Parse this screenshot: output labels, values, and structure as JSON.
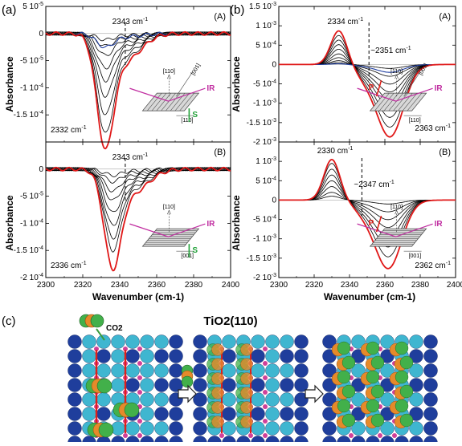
{
  "figure_labels": {
    "a": "(a)",
    "b": "(b)",
    "c": "(c)"
  },
  "panel_c": {
    "co2_label": "CO2",
    "title": "TiO2(110)",
    "colors": {
      "ti_dark": "#1f3e9c",
      "ti_light": "#3fb6d0",
      "o_pink": "#d0409a",
      "co2_c": "#e58a2a",
      "co2_o": "#42b04a",
      "arrow_red": "#e0201a"
    }
  },
  "chart_data": [
    {
      "type": "line",
      "panel": "(a)-(A)",
      "tag": "(A)",
      "xlabel": "Wavenumber (cm-1)",
      "ylabel": "Absorbance",
      "xlim": [
        2300,
        2400
      ],
      "ylim": [
        -0.0002,
        5e-05
      ],
      "xticks": [
        "2300",
        "2320",
        "2340",
        "2360",
        "2380",
        "2400"
      ],
      "yticks": [
        {
          "v": 5e-05,
          "label": "5 10-5"
        },
        {
          "v": 0,
          "label": "0"
        },
        {
          "v": -5e-05,
          "label": "-5 10-5"
        },
        {
          "v": -0.0001,
          "label": "-1 10-4"
        },
        {
          "v": -0.00015,
          "label": "-1.5 10-4"
        }
      ],
      "annotations": [
        "2343 cm-1",
        "2332 cm-1"
      ],
      "peak": {
        "x": 2332,
        "type": "down",
        "dashed_at": 2343
      },
      "series": [
        {
          "color": "#000000",
          "amplitudes": [
            -1e-05,
            -2e-05,
            -3.5e-05,
            -5.5e-05,
            -7.5e-05,
            -0.0001,
            -0.00013,
            -0.00016
          ]
        },
        {
          "color": "#1f3ea0",
          "amplitudes": [
            -2.2e-05
          ]
        },
        {
          "color": "#e01818",
          "amplitudes": [
            -0.000185
          ]
        }
      ],
      "inset": {
        "top": "[110]",
        "diag": "[001]",
        "bottom": "[110]",
        "beam": "IR",
        "pol": "S"
      }
    },
    {
      "type": "line",
      "panel": "(a)-(B)",
      "tag": "(B)",
      "xlabel": "Wavenumber (cm-1)",
      "ylabel": "Absorbance",
      "xlim": [
        2300,
        2400
      ],
      "ylim": [
        -0.0002,
        5e-05
      ],
      "xticks": [
        "2300",
        "2320",
        "2340",
        "2360",
        "2380",
        "2400"
      ],
      "yticks": [
        {
          "v": 0,
          "label": "0"
        },
        {
          "v": -5e-05,
          "label": "-5 10-5"
        },
        {
          "v": -0.0001,
          "label": "-1 10-4"
        },
        {
          "v": -0.00015,
          "label": "-1.5 10-4"
        },
        {
          "v": -0.0002,
          "label": "-2 10-4"
        }
      ],
      "annotations": [
        "2343 cm-1",
        "2336 cm-1"
      ],
      "peak": {
        "x": 2336,
        "type": "down",
        "dashed_at": 2343
      },
      "series": [
        {
          "color": "#000000",
          "amplitudes": [
            -1e-05,
            -2e-05,
            -3.5e-05,
            -5e-05,
            -7e-05,
            -9e-05,
            -0.00011,
            -0.00013
          ]
        },
        {
          "color": "#e01818",
          "amplitudes": [
            -0.00016
          ]
        }
      ],
      "inset": {
        "top": "[110]",
        "bottom": "[001]",
        "beam": "IR",
        "pol": "S"
      }
    },
    {
      "type": "line",
      "panel": "(b)-(A)",
      "tag": "(A)",
      "xlabel": "Wavenumber (cm-1)",
      "ylabel": "Absorbance",
      "xlim": [
        2300,
        2400
      ],
      "ylim": [
        -0.002,
        0.0015
      ],
      "xticks": [
        "2300",
        "2320",
        "2340",
        "2360",
        "2380",
        "2400"
      ],
      "yticks": [
        {
          "v": 0.0015,
          "label": "1.5 10-3"
        },
        {
          "v": 0.001,
          "label": "1 10-3"
        },
        {
          "v": 0.0005,
          "label": "5 10-4"
        },
        {
          "v": 0,
          "label": "0"
        },
        {
          "v": -0.0005,
          "label": "-5 10-4"
        },
        {
          "v": -0.001,
          "label": "-1 10-3"
        },
        {
          "v": -0.0015,
          "label": "-1.5 10-3"
        },
        {
          "v": -0.002,
          "label": "-2 10-3"
        }
      ],
      "annotations": [
        "2334 cm-1",
        "~2351 cm-1",
        "2363 cm-1"
      ],
      "peak": {
        "x": 2334,
        "type": "bipolar",
        "neg_x": 2363,
        "dashed_at": 2351
      },
      "series": [
        {
          "color": "#000000",
          "pos": [
            5e-05,
            0.0001,
            0.00018,
            0.00028,
            0.0004,
            0.00052,
            0.00064,
            0.00076
          ],
          "neg": [
            -0.0001,
            -0.0003,
            -0.0005,
            -0.0007,
            -0.0009,
            -0.0011,
            -0.00135,
            -0.0016
          ]
        },
        {
          "color": "#1f3ea0",
          "pos": [
            2e-05
          ],
          "neg": [
            -0.0002
          ]
        },
        {
          "color": "#e01818",
          "pos": [
            0.00088
          ],
          "neg": [
            -0.00185
          ]
        }
      ],
      "inset": {
        "top": "[110]",
        "diag": "[001]",
        "bottom": "[110]",
        "beam": "IR",
        "pol": "P"
      }
    },
    {
      "type": "line",
      "panel": "(b)-(B)",
      "tag": "(B)",
      "xlabel": "Wavenumber (cm-1)",
      "ylabel": "Absorbance",
      "xlim": [
        2300,
        2400
      ],
      "ylim": [
        -0.002,
        0.0015
      ],
      "xticks": [
        "2300",
        "2320",
        "2340",
        "2360",
        "2380",
        "2400"
      ],
      "yticks": [
        {
          "v": 0.001,
          "label": "1 10-3"
        },
        {
          "v": 0.0005,
          "label": "5 10-4"
        },
        {
          "v": 0,
          "label": "0"
        },
        {
          "v": -0.0005,
          "label": "-5 10-4"
        },
        {
          "v": -0.001,
          "label": "-1 10-3"
        },
        {
          "v": -0.0015,
          "label": "-1.5 10-3"
        },
        {
          "v": -0.002,
          "label": "-2 10-3"
        }
      ],
      "annotations": [
        "2330 cm-1",
        "~2347 cm-1",
        "2362 cm-1"
      ],
      "peak": {
        "x": 2330,
        "type": "bipolar",
        "neg_x": 2362,
        "dashed_at": 2347
      },
      "series": [
        {
          "color": "#000000",
          "pos": [
            0.0001,
            0.0002,
            0.00035,
            0.0005,
            0.00065,
            0.0008,
            0.00095
          ],
          "neg": [
            -0.0001,
            -0.0003,
            -0.0005,
            -0.0007,
            -0.00095,
            -0.0012,
            -0.00145
          ]
        },
        {
          "color": "#e01818",
          "pos": [
            0.00105
          ],
          "neg": [
            -0.00175
          ]
        }
      ],
      "inset": {
        "top": "[110]",
        "bottom": "[001]",
        "beam": "IR",
        "pol": "P"
      }
    }
  ]
}
